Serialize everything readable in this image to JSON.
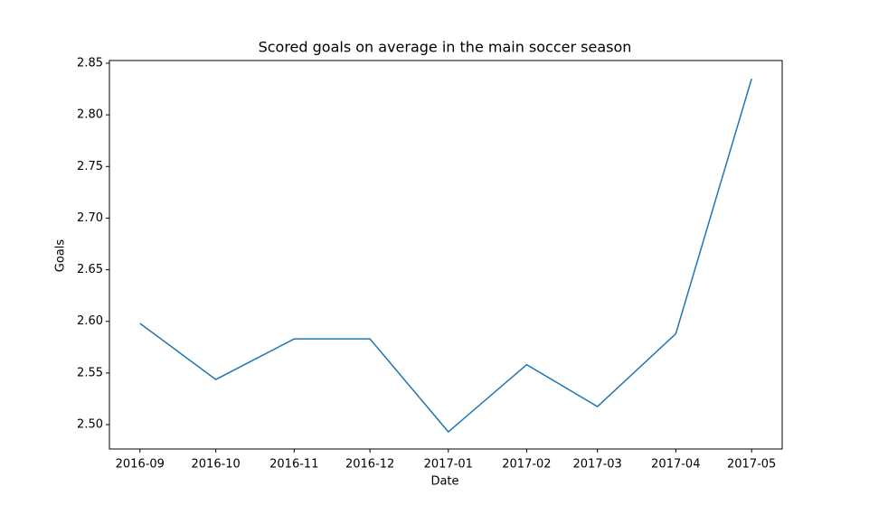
{
  "chart_data": {
    "type": "line",
    "title": "Scored goals on average in the main soccer season",
    "xlabel": "Date",
    "ylabel": "Goals",
    "x": [
      "2016-09",
      "2016-10",
      "2016-11",
      "2016-12",
      "2017-01",
      "2017-02",
      "2017-03",
      "2017-04",
      "2017-05"
    ],
    "series": [
      {
        "name": "Goals",
        "color": "#1f77b4",
        "values": [
          2.598,
          2.5437,
          2.583,
          2.583,
          2.493,
          2.558,
          2.5175,
          2.588,
          2.835
        ]
      }
    ],
    "ylim": [
      2.4764,
      2.8526
    ],
    "yticks": [
      {
        "value": 2.5,
        "label": "2.50"
      },
      2.55,
      {
        "value": 2.6,
        "label": "2.60"
      },
      2.65,
      {
        "value": 2.7,
        "label": "2.70"
      },
      2.75,
      {
        "value": 2.8,
        "label": "2.80"
      },
      2.85
    ]
  }
}
